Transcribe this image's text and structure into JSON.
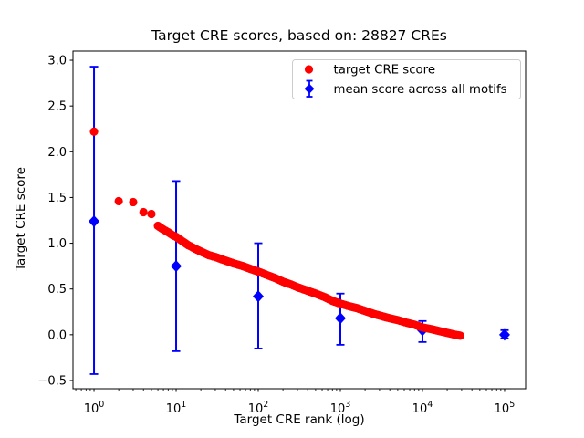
{
  "chart_data": {
    "type": "scatter",
    "title": "Target CRE scores, based on: 28827 CREs",
    "xlabel": "Target CRE rank (log)",
    "ylabel": "Target CRE score",
    "x_scale": "log",
    "grid": false,
    "xlim_log10": [
      -0.256,
      5.256
    ],
    "ylim": [
      -0.59,
      3.1
    ],
    "x_major_ticks": [
      {
        "value": 1,
        "base": "10",
        "exp": "0"
      },
      {
        "value": 10,
        "base": "10",
        "exp": "1"
      },
      {
        "value": 100,
        "base": "10",
        "exp": "2"
      },
      {
        "value": 1000,
        "base": "10",
        "exp": "3"
      },
      {
        "value": 10000,
        "base": "10",
        "exp": "4"
      },
      {
        "value": 100000,
        "base": "10",
        "exp": "5"
      }
    ],
    "y_ticks": [
      {
        "value": 3.0,
        "label": "3.0"
      },
      {
        "value": 2.5,
        "label": "2.5"
      },
      {
        "value": 2.0,
        "label": "2.0"
      },
      {
        "value": 1.5,
        "label": "1.5"
      },
      {
        "value": 1.0,
        "label": "1.0"
      },
      {
        "value": 0.5,
        "label": "0.5"
      },
      {
        "value": 0.0,
        "label": "0.0"
      },
      {
        "value": -0.5,
        "label": "−0.5"
      }
    ],
    "colors": {
      "target_series": "#ff0000",
      "mean_series": "#0000ff",
      "axes": "#000000",
      "background": "#ffffff",
      "legend_border": "#cccccc"
    },
    "legend": {
      "position": "upper right",
      "entries": [
        {
          "label": "target CRE score",
          "marker": "circle",
          "color": "#ff0000"
        },
        {
          "label": "mean score across all motifs",
          "marker": "diamond-errorbar",
          "color": "#0000ff"
        }
      ]
    },
    "series": [
      {
        "name": "target CRE score",
        "type": "scatter",
        "marker": "circle",
        "color": "#ff0000",
        "points": [
          [
            1,
            2.22
          ],
          [
            2,
            1.46
          ],
          [
            3,
            1.45
          ],
          [
            4,
            1.34
          ],
          [
            5,
            1.32
          ],
          [
            6,
            1.19
          ],
          [
            7,
            1.15
          ],
          [
            8,
            1.12
          ],
          [
            9,
            1.09
          ],
          [
            10,
            1.07
          ],
          [
            12,
            1.02
          ],
          [
            14,
            0.98
          ],
          [
            17,
            0.94
          ],
          [
            20,
            0.91
          ],
          [
            25,
            0.87
          ],
          [
            30,
            0.85
          ],
          [
            40,
            0.81
          ],
          [
            50,
            0.78
          ],
          [
            65,
            0.75
          ],
          [
            80,
            0.72
          ],
          [
            100,
            0.69
          ],
          [
            130,
            0.65
          ],
          [
            160,
            0.62
          ],
          [
            200,
            0.58
          ],
          [
            250,
            0.55
          ],
          [
            300,
            0.52
          ],
          [
            400,
            0.48
          ],
          [
            500,
            0.45
          ],
          [
            650,
            0.41
          ],
          [
            800,
            0.37
          ],
          [
            1000,
            0.34
          ],
          [
            1300,
            0.31
          ],
          [
            1600,
            0.29
          ],
          [
            2000,
            0.26
          ],
          [
            2500,
            0.23
          ],
          [
            3000,
            0.21
          ],
          [
            4000,
            0.18
          ],
          [
            5000,
            0.16
          ],
          [
            6500,
            0.13
          ],
          [
            8000,
            0.11
          ],
          [
            10000,
            0.08
          ],
          [
            13000,
            0.06
          ],
          [
            16000,
            0.04
          ],
          [
            20000,
            0.02
          ],
          [
            25000,
            0.0
          ],
          [
            28827,
            -0.01
          ]
        ]
      },
      {
        "name": "mean score across all motifs",
        "type": "errorbar",
        "marker": "diamond",
        "color": "#0000ff",
        "points": [
          {
            "x": 1,
            "y": 1.24,
            "ylo": -0.43,
            "yhi": 2.93
          },
          {
            "x": 10,
            "y": 0.75,
            "ylo": -0.18,
            "yhi": 1.68
          },
          {
            "x": 100,
            "y": 0.42,
            "ylo": -0.15,
            "yhi": 1.0
          },
          {
            "x": 1000,
            "y": 0.18,
            "ylo": -0.11,
            "yhi": 0.45
          },
          {
            "x": 10000,
            "y": 0.05,
            "ylo": -0.08,
            "yhi": 0.15
          },
          {
            "x": 100000,
            "y": 0.0,
            "ylo": -0.04,
            "yhi": 0.05
          }
        ]
      }
    ]
  }
}
